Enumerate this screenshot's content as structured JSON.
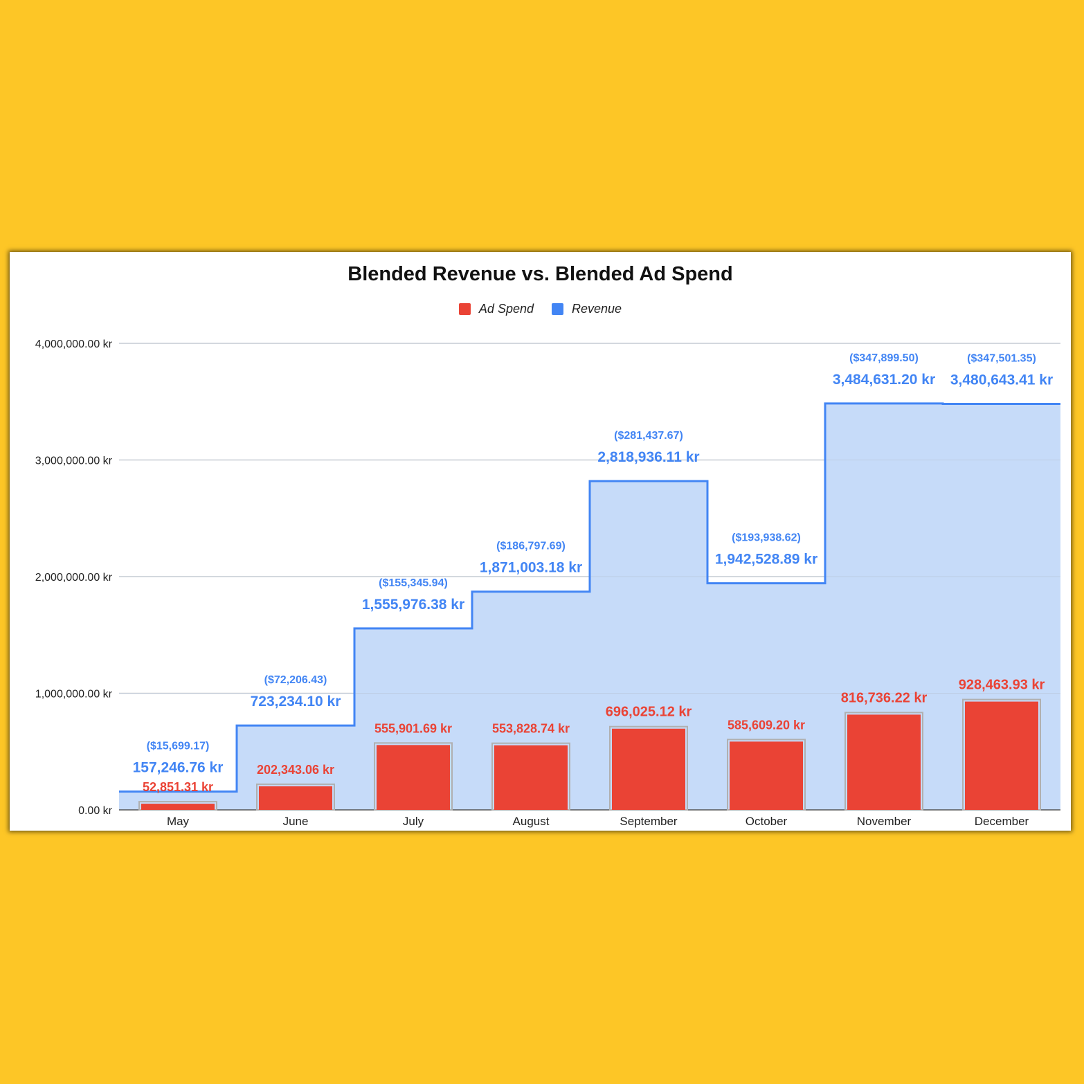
{
  "chart_data": {
    "type": "bar",
    "title": "Blended Revenue vs. Blended Ad Spend",
    "xlabel": "",
    "ylabel": "",
    "categories": [
      "May",
      "June",
      "July",
      "August",
      "September",
      "October",
      "November",
      "December"
    ],
    "ylim": [
      0,
      4000000
    ],
    "y_ticks": [
      {
        "value": 0,
        "label": "0.00 kr"
      },
      {
        "value": 1000000,
        "label": "1,000,000.00 kr"
      },
      {
        "value": 2000000,
        "label": "2,000,000.00 kr"
      },
      {
        "value": 3000000,
        "label": "3,000,000.00 kr"
      },
      {
        "value": 4000000,
        "label": "4,000,000.00 kr"
      }
    ],
    "grid": true,
    "legend_position": "top",
    "series": [
      {
        "name": "Ad Spend",
        "type": "bar",
        "color": "#ea4335",
        "values": [
          52851.31,
          202343.06,
          555901.69,
          553828.74,
          696025.12,
          585609.2,
          816736.22,
          928463.93
        ],
        "labels": [
          "52,851.31 kr",
          "202,343.06 kr",
          "555,901.69 kr",
          "553,828.74 kr",
          "696,025.12 kr",
          "585,609.20 kr",
          "816,736.22 kr",
          "928,463.93 kr"
        ]
      },
      {
        "name": "Revenue",
        "type": "stepped-area",
        "color": "#4285f4",
        "fill": "#c6dbf9",
        "values": [
          157246.76,
          723234.1,
          1555976.38,
          1871003.18,
          2818936.11,
          1942528.89,
          3484631.2,
          3480643.41
        ],
        "labels": [
          "157,246.76 kr",
          "723,234.10 kr",
          "1,555,976.38 kr",
          "1,871,003.18 kr",
          "2,818,936.11 kr",
          "1,942,528.89 kr",
          "3,484,631.20 kr",
          "3,480,643.41 kr"
        ],
        "usd_labels": [
          "($15,699.17)",
          "($72,206.43)",
          "($155,345.94)",
          "($186,797.69)",
          "($281,437.67)",
          "($193,938.62)",
          "($347,899.50)",
          "($347,501.35)"
        ]
      }
    ]
  }
}
